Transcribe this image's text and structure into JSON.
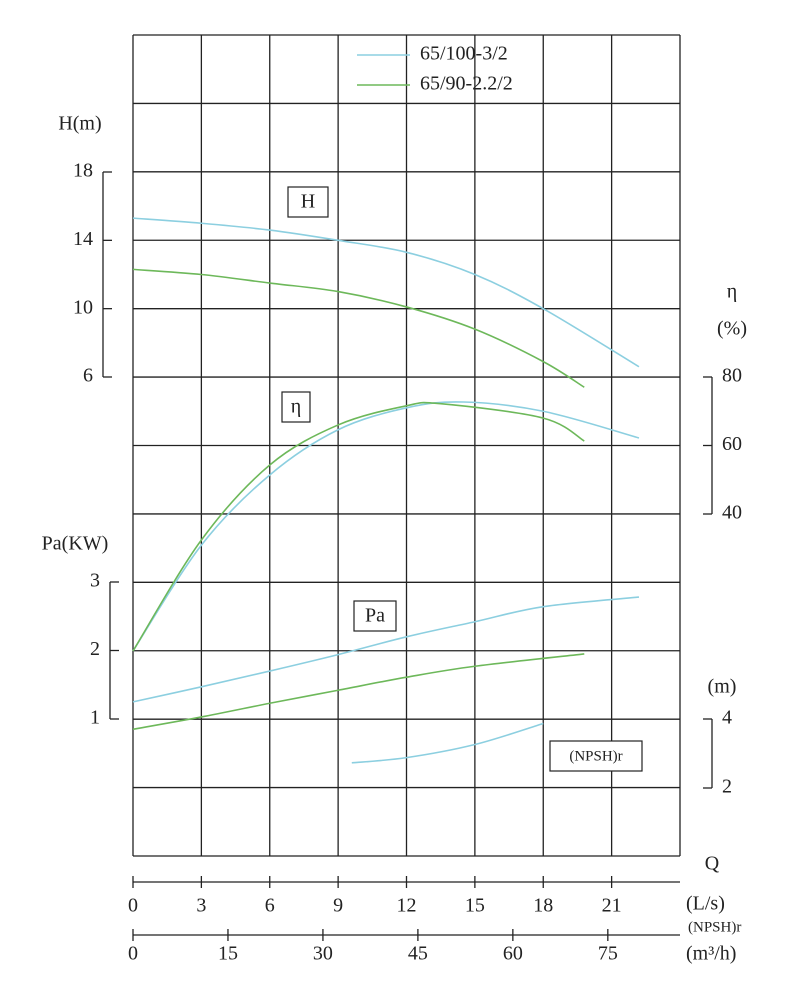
{
  "chart_data": {
    "type": "line",
    "series": [
      {
        "name": "65/100-3/2",
        "color": "#8ccfe0"
      },
      {
        "name": "65/90-2.2/2",
        "color": "#6db85a"
      }
    ],
    "x_label": "Q",
    "x_unit": "(L/s)",
    "xlim": [
      0,
      24
    ],
    "xticks": [
      0,
      3,
      6,
      9,
      12,
      15,
      18,
      21
    ],
    "x2_label": "(NPSH)r",
    "x2_unit": "(m³/h)",
    "x2lim": [
      0,
      86.4
    ],
    "x2ticks": [
      0,
      15,
      30,
      45,
      60,
      75
    ],
    "panels": [
      {
        "box_label": "H",
        "axis_label": [
          "H(m)"
        ],
        "side": "left",
        "ylim": [
          6,
          18
        ],
        "yticks": [
          6,
          10,
          14,
          18
        ],
        "curves": [
          {
            "x": [
              0,
              3,
              6,
              9,
              12,
              15,
              18,
              22.2
            ],
            "values": [
              15.3,
              15.0,
              14.6,
              14.0,
              13.3,
              12.0,
              10.0,
              6.6
            ]
          },
          {
            "x": [
              0,
              3,
              6,
              9,
              12,
              15,
              18,
              19.8
            ],
            "values": [
              12.3,
              12.0,
              11.5,
              11.0,
              10.1,
              8.8,
              6.9,
              5.4
            ]
          }
        ]
      },
      {
        "box_label": "η",
        "axis_label": [
          "η",
          "(%)"
        ],
        "side": "right",
        "ylim": [
          40,
          80
        ],
        "yticks": [
          40,
          60,
          80
        ],
        "curves": [
          {
            "x": [
              0,
              3,
              6,
              9,
              12,
              14.5,
              18,
              22.2
            ],
            "values": [
              0,
              30.9,
              51.4,
              64.6,
              71,
              72.7,
              70,
              62.2
            ]
          },
          {
            "x": [
              0,
              3,
              6,
              9,
              12,
              13.5,
              18,
              19.8
            ],
            "values": [
              0,
              32.4,
              54.3,
              66,
              71.6,
              72.2,
              68,
              61.3
            ]
          }
        ]
      },
      {
        "box_label": "Pa",
        "axis_label": [
          "Pa(KW)"
        ],
        "side": "left",
        "ylim": [
          1,
          3
        ],
        "yticks": [
          1,
          2,
          3
        ],
        "curves": [
          {
            "x": [
              0,
              3,
              6,
              9,
              12,
              15,
              18,
              22.2
            ],
            "values": [
              1.25,
              1.47,
              1.7,
              1.94,
              2.2,
              2.42,
              2.64,
              2.78
            ]
          },
          {
            "x": [
              0,
              3,
              6,
              9,
              12,
              15,
              19.8
            ],
            "values": [
              0.85,
              1.03,
              1.23,
              1.42,
              1.61,
              1.77,
              1.95
            ]
          }
        ]
      },
      {
        "box_label": "(NPSH)r",
        "axis_label": [
          "(m)"
        ],
        "side": "right",
        "ylim": [
          2,
          4
        ],
        "yticks": [
          2,
          4
        ],
        "curves": [
          {
            "x": [
              9.6,
              12,
              15,
              18
            ],
            "values": [
              2.73,
              2.88,
              3.26,
              3.87
            ]
          }
        ]
      }
    ]
  }
}
